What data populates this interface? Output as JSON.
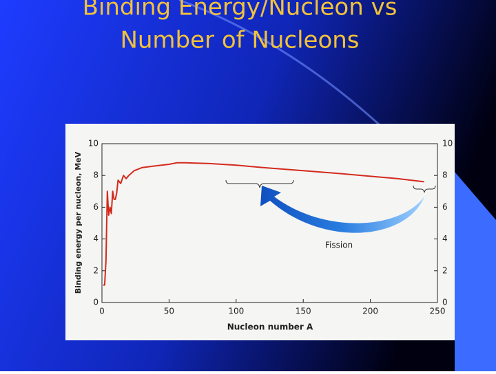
{
  "chart_data": {
    "type": "line",
    "title": [
      "Binding Energy/Nucleon vs",
      "Number of Nucleons"
    ],
    "x_label": "Nucleon number A",
    "y_label": "Binding energy per nucleon, MeV",
    "annotation": "Fission",
    "series": [
      {
        "color": "#d42a1e",
        "x": [
          1,
          2,
          3,
          4,
          5,
          6,
          7,
          8,
          9,
          10,
          11,
          12,
          14,
          16,
          18,
          20,
          24,
          30,
          40,
          50,
          56,
          62,
          80,
          100,
          120,
          150,
          180,
          200,
          220,
          240
        ],
        "values": [
          1.1,
          1.1,
          2.6,
          7.0,
          5.5,
          6.0,
          5.6,
          7.0,
          6.5,
          6.5,
          6.9,
          7.7,
          7.5,
          8.0,
          7.8,
          8.0,
          8.3,
          8.5,
          8.6,
          8.7,
          8.8,
          8.8,
          8.75,
          8.65,
          8.5,
          8.3,
          8.1,
          7.95,
          7.8,
          7.6
        ]
      }
    ],
    "xlim": [
      0,
      250
    ],
    "xticks": [
      0,
      50,
      100,
      150,
      200,
      250
    ],
    "ylim": [
      0,
      10
    ],
    "yticks": [
      0,
      2,
      4,
      6,
      8,
      10
    ],
    "y2lim": [
      0,
      10
    ],
    "y2ticks": [
      0,
      2,
      4,
      6,
      8,
      10
    ]
  }
}
